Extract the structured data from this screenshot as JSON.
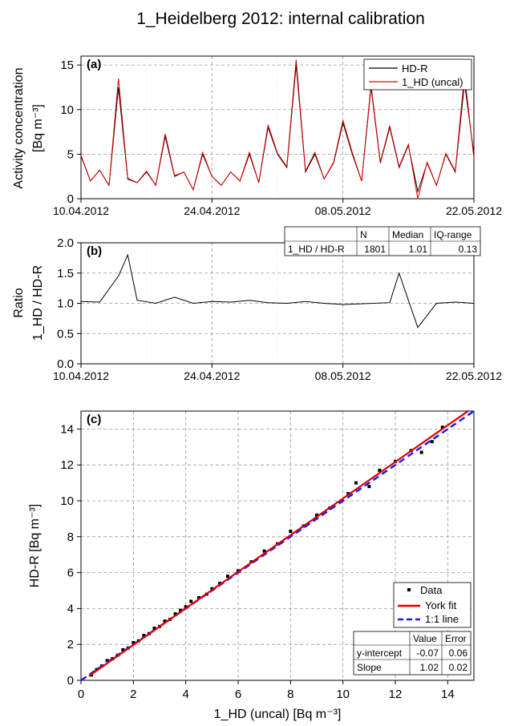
{
  "figure_title": "1_Heidelberg 2012: internal calibration",
  "chart_data": [
    {
      "panel": "(a)",
      "type": "line",
      "ylabel_line1": "Activity concentration",
      "ylabel_line2": "[Bq m⁻³]",
      "xlim": [
        "2012-04-10",
        "2012-05-22"
      ],
      "ylim": [
        0,
        16
      ],
      "yticks": [
        "0",
        "5",
        "10",
        "15"
      ],
      "xticks": [
        "10.04.2012",
        "24.04.2012",
        "08.05.2012",
        "22.05.2012"
      ],
      "grid": true,
      "legend_position": "top-right",
      "legend": [
        "HD-R",
        "1_HD (uncal)"
      ],
      "series": [
        {
          "name": "HD-R",
          "color": "#000000",
          "x": [
            "2012-04-10",
            "2012-04-11",
            "2012-04-12",
            "2012-04-13",
            "2012-04-14",
            "2012-04-15",
            "2012-04-16",
            "2012-04-17",
            "2012-04-18",
            "2012-04-19",
            "2012-04-20",
            "2012-04-21",
            "2012-04-22",
            "2012-04-23",
            "2012-04-24",
            "2012-04-25",
            "2012-04-26",
            "2012-04-27",
            "2012-04-28",
            "2012-04-29",
            "2012-04-30",
            "2012-05-01",
            "2012-05-02",
            "2012-05-03",
            "2012-05-04",
            "2012-05-05",
            "2012-05-06",
            "2012-05-07",
            "2012-05-08",
            "2012-05-09",
            "2012-05-10",
            "2012-05-11",
            "2012-05-12",
            "2012-05-13",
            "2012-05-14",
            "2012-05-15",
            "2012-05-16",
            "2012-05-17",
            "2012-05-18",
            "2012-05-19",
            "2012-05-20",
            "2012-05-21",
            "2012-05-22"
          ],
          "values": [
            4.8,
            2.0,
            3.2,
            1.5,
            12.5,
            2.2,
            1.8,
            3.0,
            1.5,
            7.0,
            2.5,
            3.0,
            1.0,
            5.0,
            2.5,
            1.5,
            3.0,
            2.0,
            5.0,
            1.8,
            8.0,
            5.0,
            3.5,
            15.0,
            3.0,
            5.0,
            2.2,
            4.0,
            8.5,
            5.0,
            2.0,
            12.5,
            4.0,
            8.0,
            3.5,
            6.0,
            0.8,
            4.0,
            1.5,
            5.0,
            3.0,
            13.0,
            5.0
          ]
        },
        {
          "name": "1_HD (uncal)",
          "color": "#e00000",
          "x": [
            "2012-04-10",
            "2012-04-11",
            "2012-04-12",
            "2012-04-13",
            "2012-04-14",
            "2012-04-15",
            "2012-04-16",
            "2012-04-17",
            "2012-04-18",
            "2012-04-19",
            "2012-04-20",
            "2012-04-21",
            "2012-04-22",
            "2012-04-23",
            "2012-04-24",
            "2012-04-25",
            "2012-04-26",
            "2012-04-27",
            "2012-04-28",
            "2012-04-29",
            "2012-04-30",
            "2012-05-01",
            "2012-05-02",
            "2012-05-03",
            "2012-05-04",
            "2012-05-05",
            "2012-05-06",
            "2012-05-07",
            "2012-05-08",
            "2012-05-09",
            "2012-05-10",
            "2012-05-11",
            "2012-05-12",
            "2012-05-13",
            "2012-05-14",
            "2012-05-15",
            "2012-05-16",
            "2012-05-17",
            "2012-05-18",
            "2012-05-19",
            "2012-05-20",
            "2012-05-21",
            "2012-05-22"
          ],
          "values": [
            4.9,
            2.0,
            3.2,
            1.5,
            13.5,
            2.3,
            1.8,
            3.1,
            1.5,
            7.3,
            2.6,
            3.0,
            1.0,
            5.2,
            2.5,
            1.5,
            3.0,
            2.0,
            5.2,
            1.8,
            8.3,
            5.1,
            3.6,
            15.6,
            3.1,
            5.2,
            2.2,
            4.1,
            8.8,
            5.2,
            2.0,
            12.8,
            4.1,
            8.2,
            3.6,
            6.1,
            0.0,
            4.1,
            1.5,
            5.1,
            3.1,
            14.0,
            4.5
          ]
        }
      ]
    },
    {
      "panel": "(b)",
      "type": "line",
      "ylabel_line1": "Ratio",
      "ylabel_line2": "1_HD / HD-R",
      "xlim": [
        "2012-04-10",
        "2012-05-22"
      ],
      "ylim": [
        0,
        2
      ],
      "yticks": [
        "0.0",
        "0.5",
        "1.0",
        "1.5",
        "2.0"
      ],
      "xticks": [
        "10.04.2012",
        "24.04.2012",
        "08.05.2012",
        "22.05.2012"
      ],
      "grid": true,
      "series": [
        {
          "name": "1_HD / HD-R",
          "color": "#000000",
          "x": [
            "2012-04-10",
            "2012-04-12",
            "2012-04-14",
            "2012-04-15",
            "2012-04-16",
            "2012-04-18",
            "2012-04-20",
            "2012-04-22",
            "2012-04-24",
            "2012-04-26",
            "2012-04-28",
            "2012-04-30",
            "2012-05-02",
            "2012-05-04",
            "2012-05-06",
            "2012-05-08",
            "2012-05-13",
            "2012-05-14",
            "2012-05-15",
            "2012-05-16",
            "2012-05-18",
            "2012-05-20",
            "2012-05-22"
          ],
          "values": [
            1.03,
            1.02,
            1.45,
            1.8,
            1.05,
            1.0,
            1.1,
            1.0,
            1.03,
            1.02,
            1.05,
            1.01,
            1.0,
            1.03,
            1.0,
            0.98,
            1.01,
            1.5,
            1.05,
            0.6,
            1.0,
            1.02,
            1.0
          ]
        }
      ],
      "stats_table": {
        "headers": [
          "",
          "N",
          "Median",
          "IQ-range"
        ],
        "rows": [
          [
            "1_HD / HD-R",
            "1801",
            "1.01",
            "0.13"
          ]
        ]
      }
    },
    {
      "panel": "(c)",
      "type": "scatter",
      "xlabel": "1_HD (uncal) [Bq m⁻³]",
      "ylabel": "HD-R [Bq m⁻³]",
      "xlim": [
        0,
        15
      ],
      "ylim": [
        0,
        15
      ],
      "xticks": [
        "0",
        "2",
        "4",
        "6",
        "8",
        "10",
        "12",
        "14"
      ],
      "yticks": [
        "0",
        "2",
        "4",
        "6",
        "8",
        "10",
        "12",
        "14"
      ],
      "grid": true,
      "legend_position": "bottom-right",
      "legend": [
        "Data",
        "York fit",
        "1:1 line"
      ],
      "series": [
        {
          "name": "Data",
          "color": "#000000",
          "points": [
            [
              0.4,
              0.3
            ],
            [
              0.6,
              0.6
            ],
            [
              0.8,
              0.8
            ],
            [
              1.0,
              1.1
            ],
            [
              1.2,
              1.2
            ],
            [
              1.4,
              1.4
            ],
            [
              1.6,
              1.7
            ],
            [
              1.8,
              1.8
            ],
            [
              2.0,
              2.1
            ],
            [
              2.2,
              2.2
            ],
            [
              2.4,
              2.5
            ],
            [
              2.6,
              2.6
            ],
            [
              2.8,
              2.9
            ],
            [
              3.0,
              3.0
            ],
            [
              3.2,
              3.3
            ],
            [
              3.4,
              3.4
            ],
            [
              3.6,
              3.7
            ],
            [
              3.8,
              3.9
            ],
            [
              4.0,
              4.1
            ],
            [
              4.2,
              4.4
            ],
            [
              4.5,
              4.6
            ],
            [
              4.8,
              4.8
            ],
            [
              5.0,
              5.1
            ],
            [
              5.3,
              5.4
            ],
            [
              5.6,
              5.8
            ],
            [
              6.0,
              6.1
            ],
            [
              6.5,
              6.6
            ],
            [
              7.0,
              7.2
            ],
            [
              7.5,
              7.6
            ],
            [
              8.0,
              8.3
            ],
            [
              8.5,
              8.6
            ],
            [
              9.0,
              9.2
            ],
            [
              9.5,
              9.6
            ],
            [
              10.2,
              10.4
            ],
            [
              10.5,
              11.0
            ],
            [
              11.0,
              10.8
            ],
            [
              11.4,
              11.7
            ],
            [
              12.0,
              12.2
            ],
            [
              12.6,
              12.8
            ],
            [
              13.0,
              12.7
            ],
            [
              13.4,
              13.3
            ],
            [
              13.8,
              14.1
            ]
          ]
        },
        {
          "name": "York fit",
          "color": "#e00000",
          "intercept": -0.07,
          "slope": 1.02
        },
        {
          "name": "1:1 line",
          "color": "#1a1aff"
        }
      ],
      "stats_table": {
        "headers": [
          "",
          "Value",
          "Error"
        ],
        "rows": [
          [
            "y-intercept",
            "-0.07",
            "0.06"
          ],
          [
            "Slope",
            "1.02",
            "0.02"
          ]
        ]
      }
    }
  ]
}
